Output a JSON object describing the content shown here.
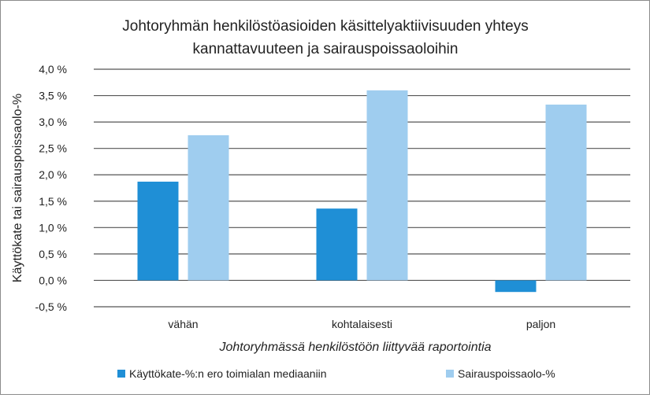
{
  "chart_data": {
    "type": "bar",
    "title": "Johtoryhmän henkilöstöasioiden käsittelyaktiivisuuden yhteys kannattavuuteen ja sairauspoissaoloihin",
    "title_lines": [
      "Johtoryhmän henkilöstöasioiden käsittelyaktiivisuuden yhteys",
      "kannattavuuteen ja sairauspoissaoloihin"
    ],
    "xlabel": "Johtoryhmässä henkilöstöön liittyvää raportointia",
    "ylabel": "Käyttökate tai sairauspoissaolo-%",
    "categories": [
      "vähän",
      "kohtalaisesti",
      "paljon"
    ],
    "series": [
      {
        "name": "Käyttökate-%:n ero toimialan mediaaniin",
        "color": "#1f8fd6",
        "values": [
          1.87,
          1.36,
          -0.22
        ]
      },
      {
        "name": "Sairauspoissaolo-%",
        "color": "#9fcdef",
        "values": [
          2.75,
          3.6,
          3.33
        ]
      }
    ],
    "ylim": [
      -0.5,
      4.0
    ],
    "ytick_values": [
      -0.5,
      0.0,
      0.5,
      1.0,
      1.5,
      2.0,
      2.5,
      3.0,
      3.5,
      4.0
    ],
    "ytick_labels": [
      "-0,5 %",
      "0,0 %",
      "0,5 %",
      "1,0 %",
      "1,5 %",
      "2,0 %",
      "2,5 %",
      "3,0 %",
      "3,5 %",
      "4,0 %"
    ],
    "grid": true,
    "legend_position": "bottom"
  }
}
